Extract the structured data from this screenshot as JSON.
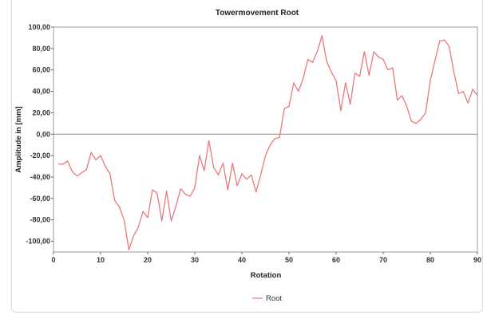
{
  "chart_data": {
    "type": "line",
    "title": "Towermovement Root",
    "xlabel": "Rotation",
    "ylabel": "Amplitude in [mm]",
    "xlim": [
      0,
      90
    ],
    "ylim": [
      -110,
      100
    ],
    "xticks": [
      "0",
      "10",
      "20",
      "30",
      "40",
      "50",
      "60",
      "70",
      "80",
      "90"
    ],
    "yticks": [
      "100,00",
      "80,00",
      "60,00",
      "40,00",
      "20,00",
      "0,00",
      "-20,00",
      "-40,00",
      "-60,00",
      "-80,00",
      "-100,00"
    ],
    "grid": false,
    "legend": "bottom-center",
    "series": [
      {
        "name": "Root",
        "color": "#e87a7a",
        "x": [
          1,
          2,
          3,
          4,
          5,
          6,
          7,
          8,
          9,
          10,
          11,
          12,
          13,
          14,
          15,
          16,
          17,
          18,
          19,
          20,
          21,
          22,
          23,
          24,
          25,
          26,
          27,
          28,
          29,
          30,
          31,
          32,
          33,
          34,
          35,
          36,
          37,
          38,
          39,
          40,
          41,
          42,
          43,
          44,
          45,
          46,
          47,
          48,
          49,
          50,
          51,
          52,
          53,
          54,
          55,
          56,
          57,
          58,
          59,
          60,
          61,
          62,
          63,
          64,
          65,
          66,
          67,
          68,
          69,
          70,
          71,
          72,
          73,
          74,
          75,
          76,
          77,
          78,
          79,
          80,
          81,
          82,
          83,
          84,
          85,
          86,
          87,
          88,
          89,
          90
        ],
        "values": [
          -28,
          -28,
          -25,
          -35,
          -39,
          -36,
          -33,
          -17,
          -24,
          -20,
          -30,
          -37,
          -62,
          -68,
          -80,
          -108,
          -95,
          -87,
          -72,
          -78,
          -52,
          -55,
          -81,
          -53,
          -81,
          -67,
          -51,
          -56,
          -58,
          -50,
          -20,
          -34,
          -6,
          -31,
          -38,
          -27,
          -52,
          -27,
          -48,
          -37,
          -42,
          -38,
          -54,
          -38,
          -20,
          -10,
          -4,
          -3,
          24,
          26,
          48,
          40,
          52,
          70,
          67,
          77,
          92,
          68,
          58,
          50,
          22,
          48,
          28,
          57,
          54,
          77,
          55,
          77,
          72,
          70,
          60,
          62,
          32,
          36,
          26,
          12,
          10,
          14,
          20,
          50,
          69,
          87,
          88,
          82,
          58,
          38,
          40,
          29,
          42,
          36
        ]
      }
    ]
  }
}
